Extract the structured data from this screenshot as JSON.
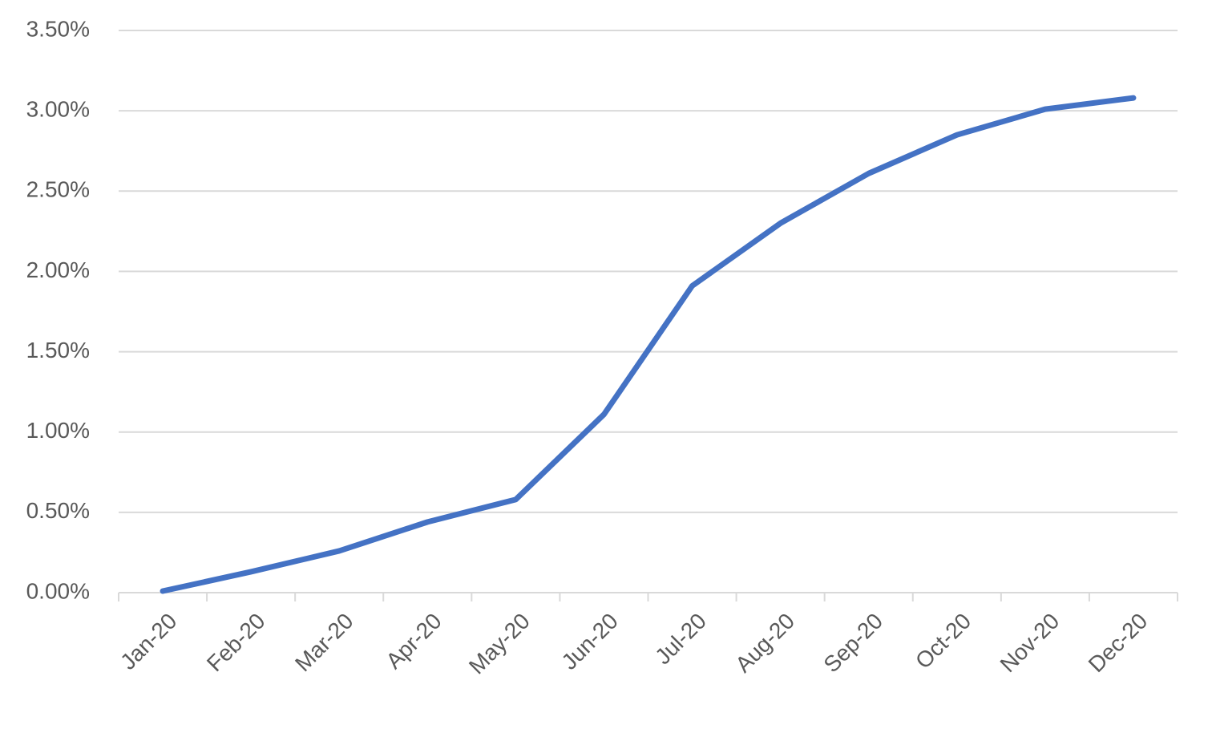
{
  "chart_data": {
    "type": "line",
    "categories": [
      "Jan-20",
      "Feb-20",
      "Mar-20",
      "Apr-20",
      "May-20",
      "Jun-20",
      "Jul-20",
      "Aug-20",
      "Sep-20",
      "Oct-20",
      "Nov-20",
      "Dec-20"
    ],
    "values": [
      0.01,
      0.13,
      0.26,
      0.44,
      0.58,
      1.11,
      1.91,
      2.3,
      2.61,
      2.85,
      3.01,
      3.08
    ],
    "color": "#4472c4",
    "ylim": [
      0,
      3.5
    ],
    "yticks": [
      {
        "value": 0,
        "label": "0.00%"
      },
      {
        "value": 0.5,
        "label": "0.50%"
      },
      {
        "value": 1,
        "label": "1.00%"
      },
      {
        "value": 1.5,
        "label": "1.50%"
      },
      {
        "value": 2,
        "label": "2.00%"
      },
      {
        "value": 2.5,
        "label": "2.50%"
      },
      {
        "value": 3,
        "label": "3.00%"
      },
      {
        "value": 3.5,
        "label": "3.50%"
      }
    ],
    "grid": true
  }
}
